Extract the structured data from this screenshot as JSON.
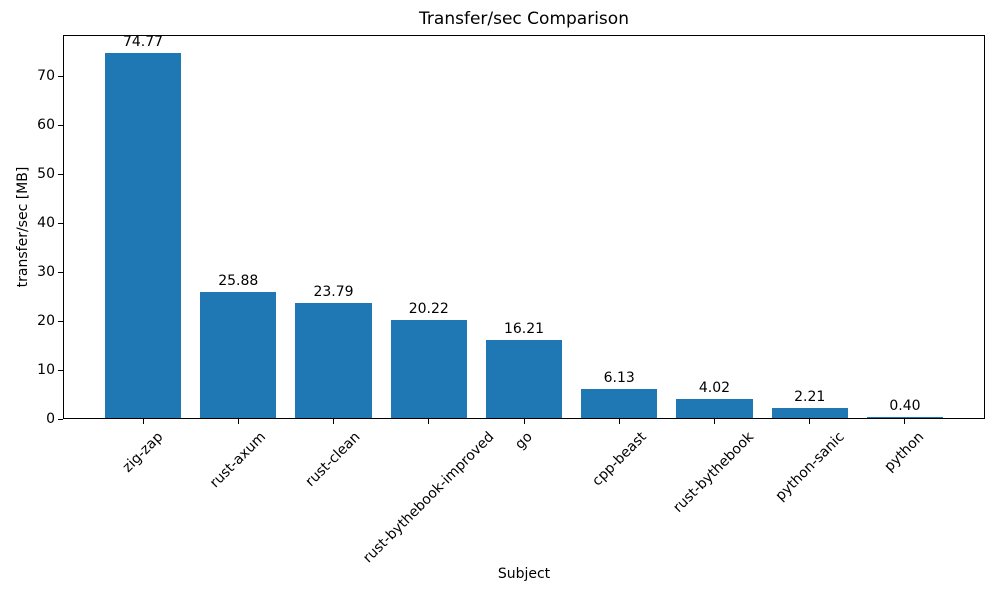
{
  "chart_data": {
    "type": "bar",
    "title": "Transfer/sec Comparison",
    "xlabel": "Subject",
    "ylabel": "transfer/sec [MB]",
    "categories": [
      "zig-zap",
      "rust-axum",
      "rust-clean",
      "rust-bythebook-improved",
      "go",
      "cpp-beast",
      "rust-bythebook",
      "python-sanic",
      "python"
    ],
    "values": [
      74.77,
      25.88,
      23.79,
      20.22,
      16.21,
      6.13,
      4.02,
      2.21,
      0.4
    ],
    "value_labels": [
      "74.77",
      "25.88",
      "23.79",
      "20.22",
      "16.21",
      "6.13",
      "4.02",
      "2.21",
      "0.40"
    ],
    "yticks": [
      0,
      10,
      20,
      30,
      40,
      50,
      60,
      70
    ],
    "ylim": [
      0,
      78.5
    ],
    "bar_color": "#1f77b4",
    "text_color": "#000000",
    "xtick_rotation": 45,
    "grid": false,
    "legend": null
  }
}
